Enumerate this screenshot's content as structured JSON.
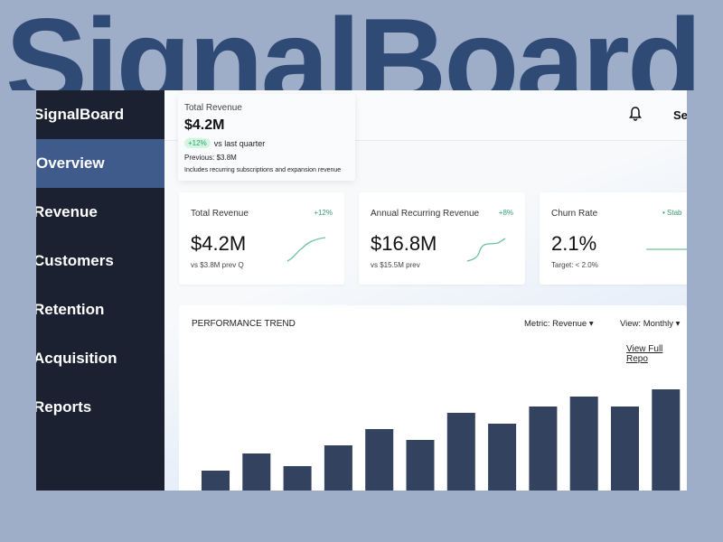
{
  "hero_title": "SignalBoard",
  "sidebar": {
    "brand": "SignalBoard",
    "items": [
      {
        "label": "Overview",
        "active": true
      },
      {
        "label": "Revenue"
      },
      {
        "label": "Customers"
      },
      {
        "label": "Retention"
      },
      {
        "label": "Acquisition"
      },
      {
        "label": "Reports"
      }
    ]
  },
  "header": {
    "bell_icon": "bell-icon",
    "link": "Se"
  },
  "tooltip": {
    "title": "Total Revenue",
    "value": "$4.2M",
    "delta": "+12%",
    "delta_text": "vs last quarter",
    "previous": "Previous: $3.8M",
    "note": "Includes recurring subscriptions and expansion revenue"
  },
  "cards": [
    {
      "label": "Total Revenue",
      "delta": "+12%",
      "value": "$4.2M",
      "sub": "vs $3.8M prev Q",
      "trend": "up"
    },
    {
      "label": "Annual Recurring Revenue",
      "delta": "+8%",
      "value": "$16.8M",
      "sub": "vs $15.5M prev",
      "trend": "up"
    },
    {
      "label": "Churn Rate",
      "delta": "• Stab",
      "value": "2.1%",
      "sub": "Target: < 2.0%",
      "trend": "flat"
    }
  ],
  "colors": {
    "accent": "#3f5b8b",
    "sidebar": "#1b2130",
    "bar": "#33425f",
    "positive": "#3a9a6e"
  },
  "chart": {
    "title": "PERFORMANCE TREND",
    "metric": "Metric: Revenue",
    "view": "View: Monthly",
    "link": "View Full Repo"
  },
  "chart_data": {
    "type": "bar",
    "values": [
      22,
      41,
      27,
      50,
      68,
      56,
      86,
      74,
      93,
      104,
      93,
      112
    ],
    "title": "PERFORMANCE TREND"
  }
}
